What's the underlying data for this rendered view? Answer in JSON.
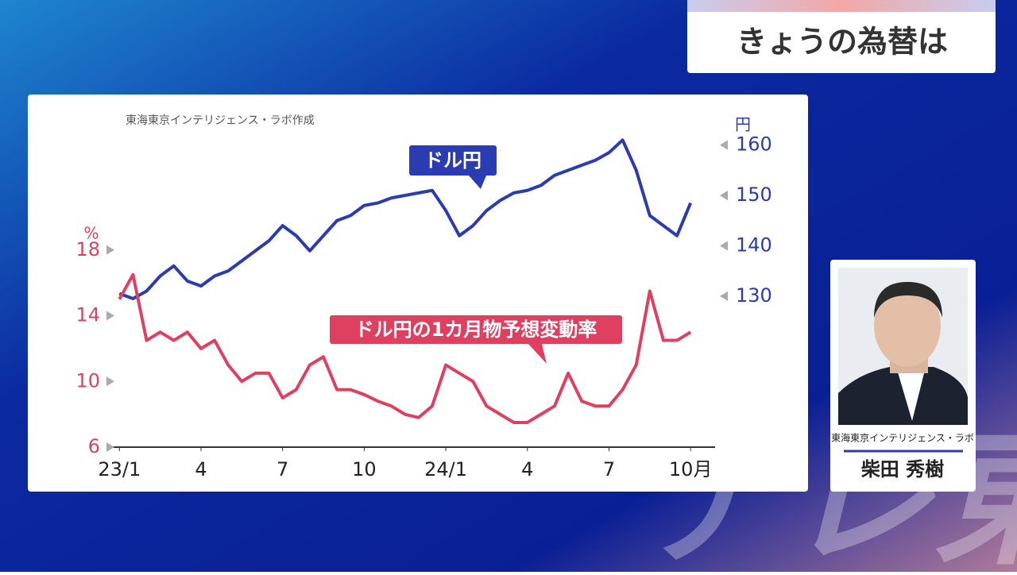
{
  "header": {
    "title": "きょうの為替は"
  },
  "chart_data": {
    "type": "line",
    "source": "東海東京インテリジェンス・ラボ作成",
    "y_unit": "%",
    "y2_unit": "円",
    "x": [
      0,
      0.5,
      1,
      1.5,
      2,
      2.5,
      3,
      3.5,
      4,
      4.5,
      5,
      5.5,
      6,
      6.5,
      7,
      7.5,
      8,
      8.5,
      9,
      9.5,
      10,
      10.5,
      11,
      11.5,
      12,
      12.5,
      13,
      13.5,
      14,
      14.5,
      15,
      15.5,
      16,
      16.5,
      17,
      17.5,
      18,
      18.5,
      19,
      19.5,
      20,
      20.5,
      21
    ],
    "xlim": [
      -0.3,
      21.9
    ],
    "xticks": [
      {
        "value": 0,
        "label": "23/1"
      },
      {
        "value": 3,
        "label": "4"
      },
      {
        "value": 6,
        "label": "7"
      },
      {
        "value": 9,
        "label": "10"
      },
      {
        "value": 12,
        "label": "24/1"
      },
      {
        "value": 15,
        "label": "4"
      },
      {
        "value": 18,
        "label": "7"
      },
      {
        "value": 21,
        "label": "10月"
      }
    ],
    "ylim": [
      6,
      25
    ],
    "yticks": [
      6,
      10,
      14,
      18
    ],
    "y2lim": [
      100,
      162
    ],
    "y2ticks": [
      130,
      140,
      150,
      160
    ],
    "series": [
      {
        "name": "ドル円",
        "color": "#2b3bb0",
        "axis": "y2",
        "values": [
          130.5,
          129.5,
          131,
          134,
          136,
          133,
          132,
          134,
          135,
          137,
          139,
          141,
          144,
          142,
          139,
          142,
          145,
          146,
          148,
          148.5,
          149.5,
          150,
          150.5,
          151,
          147,
          142,
          144,
          147,
          149,
          150.5,
          151,
          152,
          154,
          155,
          156,
          157,
          158.5,
          161,
          155,
          146,
          144,
          142,
          148.5
        ]
      },
      {
        "name": "ドル円の1カ月物予想変動率",
        "color": "#e0405f",
        "values": [
          15,
          16.5,
          12.5,
          13,
          12.5,
          13,
          12,
          12.5,
          11,
          10,
          10.5,
          10.5,
          9,
          9.5,
          11,
          11.5,
          9.5,
          9.5,
          9.2,
          8.8,
          8.5,
          8,
          7.8,
          8.5,
          11,
          10.5,
          10,
          8.5,
          8,
          7.5,
          7.5,
          8,
          8.5,
          10.5,
          8.8,
          8.5,
          8.5,
          9.5,
          11,
          15.5,
          12.5,
          12.5,
          13
        ]
      }
    ]
  },
  "guest": {
    "affiliation": "東海東京インテリジェンス・ラボ",
    "name": "柴田 秀樹"
  },
  "watermark": "テレ東"
}
